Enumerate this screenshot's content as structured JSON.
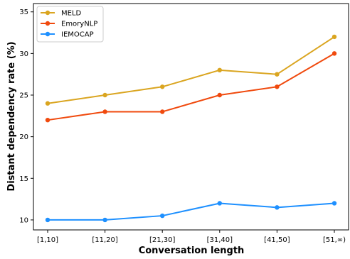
{
  "chart_data": {
    "type": "line",
    "title": "",
    "xlabel": "Conversation length",
    "ylabel": "Distant dependency rate (%)",
    "categories": [
      "[1,10]",
      "[11,20]",
      "[21,30]",
      "[31,40]",
      "[41,50]",
      "[51,∞)"
    ],
    "ylim": [
      8.8,
      36
    ],
    "yticks": [
      10,
      15,
      20,
      25,
      30,
      35
    ],
    "grid": false,
    "legend_position": "top-left",
    "series": [
      {
        "name": "MELD",
        "color": "#DAA520",
        "values": [
          24,
          25,
          26,
          28,
          27.5,
          32
        ]
      },
      {
        "name": "EmoryNLP",
        "color": "#F04A0E",
        "values": [
          22,
          23,
          23,
          25,
          26,
          30
        ]
      },
      {
        "name": "IEMOCAP",
        "color": "#1E90FF",
        "values": [
          10,
          10,
          10.5,
          12,
          11.5,
          12
        ]
      }
    ]
  }
}
